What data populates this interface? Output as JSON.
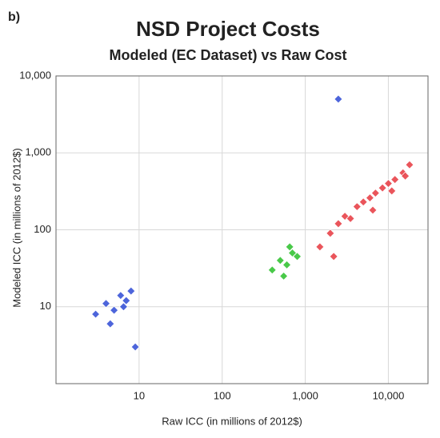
{
  "chart_data": {
    "type": "scatter",
    "panel_label": "b)",
    "title": "NSD Project Costs",
    "subtitle": "Modeled (EC Dataset) vs Raw Cost",
    "x_label": "Raw ICC (in millions of 2012$)",
    "y_label": "Modeled ICC (in millions of 2012$)",
    "log_scale": true,
    "grid": true,
    "xlim": [
      1,
      30000
    ],
    "ylim": [
      1,
      10000
    ],
    "xticks": [
      10,
      100,
      {
        "value": 1000,
        "label": "1,000"
      },
      {
        "value": 10000,
        "label": "10,000"
      }
    ],
    "yticks": [
      10,
      100,
      {
        "value": 1000,
        "label": "1,000"
      },
      {
        "value": 10000,
        "label": "10,000"
      }
    ],
    "series": [
      {
        "color": "#e8434a",
        "x": [
          1500,
          2000,
          2500,
          3000,
          3500,
          4200,
          5000,
          6000,
          7000,
          8500,
          10000,
          12000,
          15000,
          18000,
          2200,
          6500,
          11000,
          16000
        ],
        "values": [
          60,
          90,
          120,
          150,
          140,
          200,
          230,
          260,
          300,
          350,
          400,
          450,
          550,
          700,
          45,
          180,
          320,
          500
        ]
      },
      {
        "color": "#3a55d8",
        "x": [
          3,
          4,
          5,
          6,
          7,
          8,
          4.5,
          6.5,
          9,
          2500
        ],
        "values": [
          8,
          11,
          9,
          14,
          12,
          16,
          6,
          10,
          3,
          5000
        ]
      },
      {
        "color": "#36c436",
        "x": [
          400,
          500,
          600,
          700,
          800,
          550,
          650
        ],
        "values": [
          30,
          40,
          35,
          50,
          45,
          25,
          60
        ]
      }
    ]
  }
}
